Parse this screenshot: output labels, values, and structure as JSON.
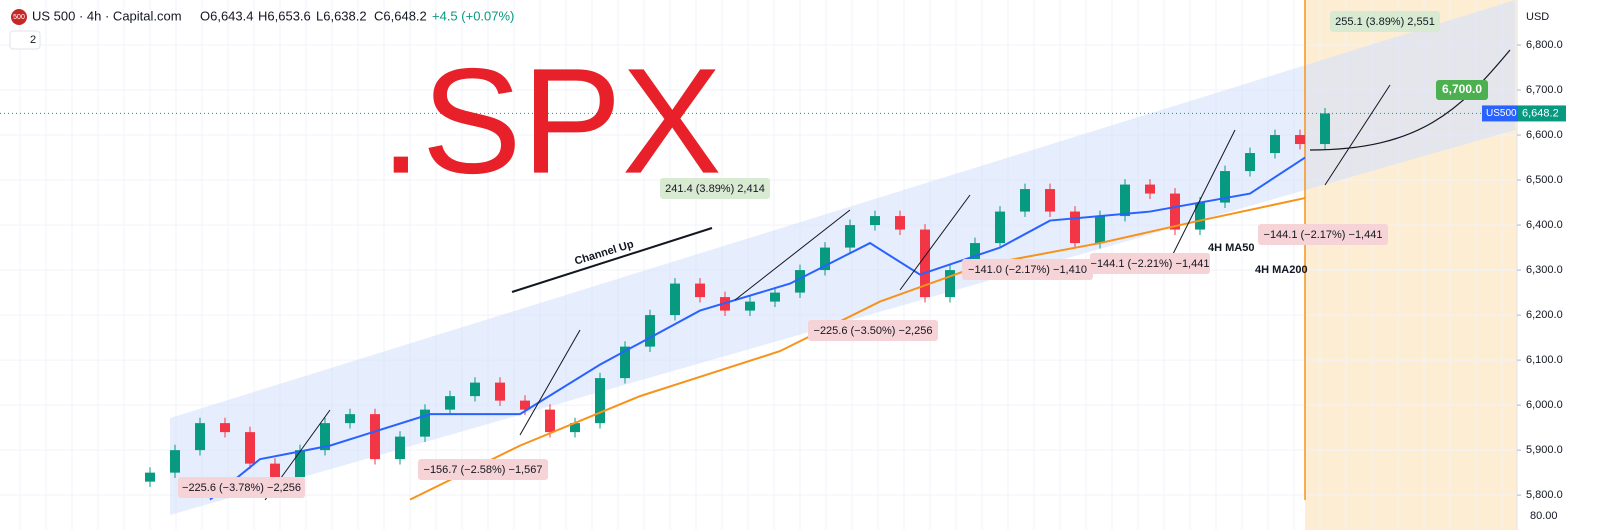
{
  "header": {
    "title": "US 500 · 4h · Capital.com",
    "open": "O6,643.4",
    "high": "H6,653.6",
    "low": "L6,638.2",
    "close": "C6,648.2",
    "change": "+4.5 (+0.07%)",
    "badge": "2",
    "currency": "USD",
    "volume_tick": "80.00",
    "logo": "500"
  },
  "chart_data": {
    "type": "candlestick",
    "title": ".SPX",
    "open": [
      5830,
      5850,
      5900,
      5960,
      5940,
      5870,
      5840,
      5900,
      5960,
      5980,
      5880,
      5930,
      5990,
      6020,
      6050,
      6010,
      5990,
      5940,
      5960,
      6060,
      6130,
      6200,
      6270,
      6240,
      6210,
      6230,
      6250,
      6300,
      6350,
      6400,
      6420,
      6390,
      6240,
      6300,
      6360,
      6430,
      6480,
      6430,
      6360,
      6420,
      6490,
      6470,
      6390,
      6450,
      6520,
      6560,
      6600,
      6580
    ],
    "high": [
      5862,
      5912,
      5972,
      5972,
      5952,
      5882,
      5912,
      5972,
      5992,
      5992,
      5942,
      6002,
      6032,
      6062,
      6062,
      6022,
      6002,
      5972,
      6072,
      6142,
      6212,
      6282,
      6282,
      6252,
      6242,
      6262,
      6312,
      6362,
      6412,
      6432,
      6432,
      6402,
      6312,
      6372,
      6442,
      6492,
      6492,
      6442,
      6432,
      6502,
      6502,
      6482,
      6462,
      6532,
      6572,
      6612,
      6612,
      6660
    ],
    "low": [
      5818,
      5838,
      5888,
      5928,
      5858,
      5828,
      5828,
      5888,
      5948,
      5868,
      5868,
      5918,
      5978,
      6008,
      5998,
      5978,
      5928,
      5928,
      5948,
      6048,
      6118,
      6188,
      6228,
      6198,
      6198,
      6218,
      6238,
      6288,
      6338,
      6388,
      6378,
      6228,
      6228,
      6288,
      6348,
      6418,
      6418,
      6348,
      6348,
      6408,
      6458,
      6378,
      6378,
      6438,
      6508,
      6548,
      6568,
      6568
    ],
    "close": [
      5850,
      5900,
      5960,
      5940,
      5870,
      5840,
      5900,
      5960,
      5980,
      5880,
      5930,
      5990,
      6020,
      6050,
      6010,
      5990,
      5940,
      5960,
      6060,
      6130,
      6200,
      6270,
      6240,
      6210,
      6230,
      6250,
      6300,
      6350,
      6400,
      6420,
      6390,
      6240,
      6300,
      6360,
      6430,
      6480,
      6430,
      6360,
      6420,
      6490,
      6470,
      6390,
      6450,
      6520,
      6560,
      6600,
      6580,
      6648
    ],
    "series": [
      {
        "name": "4H MA50",
        "color": "#2962ff",
        "x": [
          2.4,
          4.4,
          7.2,
          11.2,
          14.8,
          18,
          22,
          25.6,
          28.8,
          30.8,
          34,
          36,
          40,
          44,
          46.2
        ],
        "values": [
          5790,
          5880,
          5910,
          5980,
          5980,
          6090,
          6210,
          6270,
          6360,
          6290,
          6350,
          6410,
          6430,
          6470,
          6550
        ]
      },
      {
        "name": "4H MA200",
        "color": "#f7931a",
        "x": [
          10.4,
          14.8,
          19.6,
          25.2,
          29.2,
          33.2,
          38,
          42,
          46.2
        ],
        "values": [
          5790,
          5910,
          6020,
          6120,
          6230,
          6310,
          6360,
          6410,
          6460
        ]
      }
    ],
    "ylim": [
      5767,
      6900
    ],
    "yticks": [
      {
        "value": 5800,
        "label": "5,800.0"
      },
      {
        "value": 5900,
        "label": "5,900.0"
      },
      {
        "value": 6000,
        "label": "6,000.0"
      },
      {
        "value": 6100,
        "label": "6,100.0"
      },
      {
        "value": 6200,
        "label": "6,200.0"
      },
      {
        "value": 6300,
        "label": "6,300.0"
      },
      {
        "value": 6400,
        "label": "6,400.0"
      },
      {
        "value": 6500,
        "label": "6,500.0"
      },
      {
        "value": 6600,
        "label": "6,600.0"
      },
      {
        "value": 6700,
        "label": "6,700.0"
      },
      {
        "value": 6800,
        "label": "6,800.0"
      }
    ],
    "grid": true,
    "target": {
      "value": 6700,
      "label": "6,700.0"
    },
    "symbol_tag": "US500",
    "last_price_label": "6,648.2",
    "annotations": [
      "241.4 (3.89%) 2,414",
      "255.1 (3.89%) 2,551",
      "−225.6 (−3.78%) −2,256",
      "−156.7 (−2.58%) −1,567",
      "−225.6 (−3.50%) −2,256",
      "−141.0 (−2.17%) −1,410",
      "−144.1 (−2.21%) −1,441",
      "−144.1 (−2.17%) −1,441",
      "Channel Up",
      "4H MA50",
      "4H MA200"
    ]
  }
}
